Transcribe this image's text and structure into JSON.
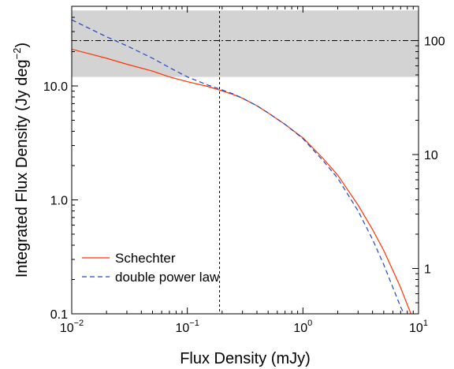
{
  "chart_data": {
    "type": "line",
    "xlabel": "Flux Density (mJy)",
    "ylabel": "Integrated Flux Density (Jy deg",
    "ylabel_sup": "−2",
    "ylabel_close": ")",
    "x_scale": "log",
    "y_scale": "log",
    "y2_scale": "log",
    "xlim": [
      0.01,
      10
    ],
    "ylim": [
      0.1,
      50
    ],
    "y2lim": [
      0.4,
      200
    ],
    "x_ticks": [
      {
        "value": 0.01,
        "base": "10",
        "exp": "−2"
      },
      {
        "value": 0.1,
        "base": "10",
        "exp": "−1"
      },
      {
        "value": 1,
        "base": "10",
        "exp": "0"
      },
      {
        "value": 10,
        "base": "10",
        "exp": "1"
      }
    ],
    "y_ticks": [
      {
        "value": 0.1,
        "label": "0.1"
      },
      {
        "value": 1,
        "label": "1.0"
      },
      {
        "value": 10,
        "label": "10.0"
      }
    ],
    "y2_ticks": [
      {
        "value": 1,
        "label": "1"
      },
      {
        "value": 10,
        "label": "10"
      },
      {
        "value": 100,
        "label": "100"
      }
    ],
    "grid": false,
    "legend_position": "bottom-left",
    "shaded_band": {
      "y_from": 12,
      "y_to": 46,
      "color": "#d3d3d3"
    },
    "hline": {
      "y": 25,
      "style": "dash-dot",
      "color": "#000000"
    },
    "vline": {
      "x": 0.19,
      "style": "dotted",
      "color": "#000000"
    },
    "series": [
      {
        "name": "Schechter",
        "color": "#ff3300",
        "style": "solid",
        "x": [
          0.01,
          0.02,
          0.03,
          0.05,
          0.07,
          0.1,
          0.15,
          0.19,
          0.25,
          0.3,
          0.4,
          0.5,
          0.7,
          1.0,
          1.5,
          2.0,
          3.0,
          4.0,
          5.0,
          6.0,
          7.0,
          8.0,
          8.6
        ],
        "y": [
          21,
          17.5,
          15.5,
          13.5,
          12.0,
          10.9,
          9.9,
          9.2,
          8.4,
          7.8,
          6.7,
          5.8,
          4.6,
          3.5,
          2.3,
          1.65,
          0.9,
          0.55,
          0.36,
          0.24,
          0.17,
          0.12,
          0.1
        ]
      },
      {
        "name": "double power law",
        "color": "#2244cc",
        "style": "dashed",
        "x": [
          0.01,
          0.02,
          0.03,
          0.05,
          0.07,
          0.1,
          0.15,
          0.19,
          0.25,
          0.3,
          0.4,
          0.5,
          0.7,
          1.0,
          1.5,
          2.0,
          3.0,
          4.0,
          5.0,
          6.0,
          7.0,
          7.5
        ],
        "y": [
          38,
          27,
          22.5,
          17.5,
          14.5,
          12.0,
          10.2,
          9.4,
          8.5,
          7.8,
          6.7,
          5.8,
          4.6,
          3.45,
          2.2,
          1.55,
          0.8,
          0.45,
          0.27,
          0.17,
          0.115,
          0.1
        ]
      }
    ]
  }
}
